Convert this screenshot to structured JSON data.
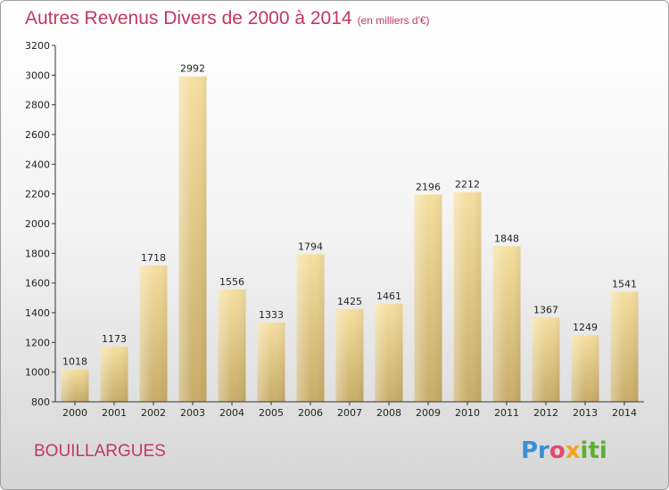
{
  "title": "Autres Revenus Divers de 2000 à 2014",
  "subtitle": "(en milliers d'€)",
  "location": "BOUILLARGUES",
  "logo": {
    "p1": "Pr",
    "p2": "o",
    "p3": "x",
    "p4": "iti"
  },
  "colors": {
    "title": "#c2385e",
    "bar_top": "#f6dfa0",
    "bar_bottom": "#c8ac68"
  },
  "chart_data": {
    "type": "bar",
    "title": "Autres Revenus Divers de 2000 à 2014",
    "subtitle": "(en milliers d'€)",
    "categories": [
      "2000",
      "2001",
      "2002",
      "2003",
      "2004",
      "2005",
      "2006",
      "2007",
      "2008",
      "2009",
      "2010",
      "2011",
      "2012",
      "2013",
      "2014"
    ],
    "values": [
      1018,
      1173,
      1718,
      2992,
      1556,
      1333,
      1794,
      1425,
      1461,
      2196,
      2212,
      1848,
      1367,
      1249,
      1541
    ],
    "ylim": [
      800,
      3200
    ],
    "yticks": [
      800,
      1000,
      1200,
      1400,
      1600,
      1800,
      2000,
      2200,
      2400,
      2600,
      2800,
      3000,
      3200
    ],
    "grid": false,
    "xlabel": "",
    "ylabel": ""
  }
}
